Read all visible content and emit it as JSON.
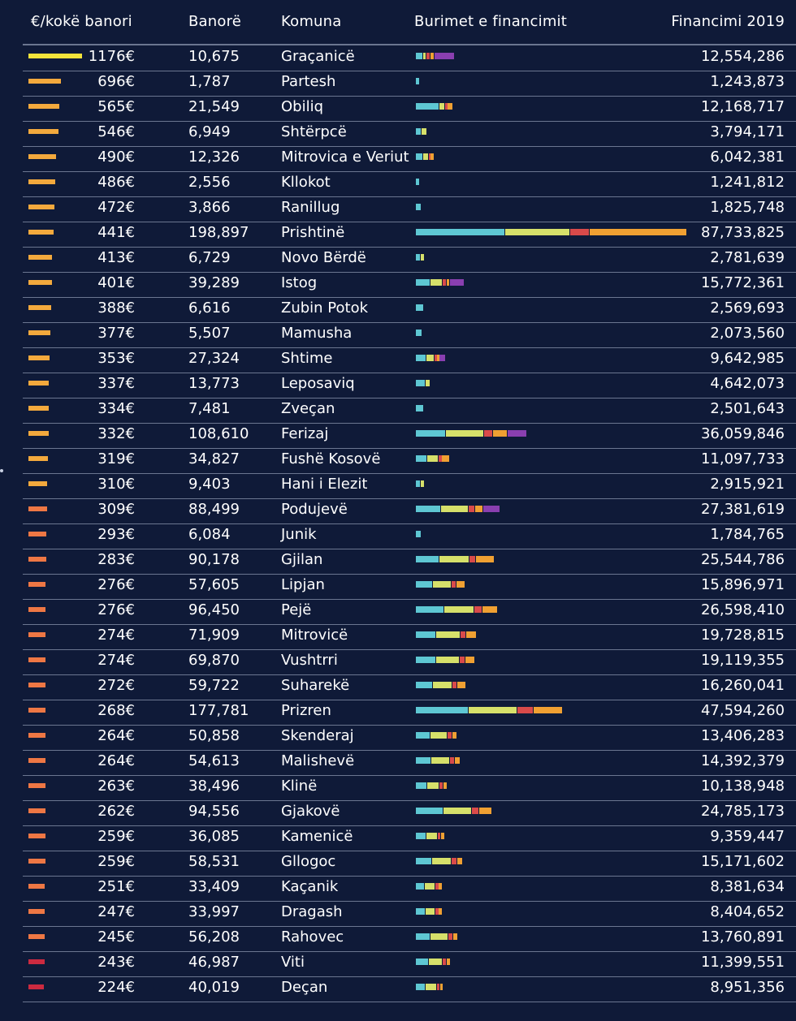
{
  "header": {
    "per_capita": "€/kokë banori",
    "population": "Banorë",
    "municipality": "Komuna",
    "sources": "Burimet e financimit",
    "funding": "Financimi 2019"
  },
  "colors": {
    "background": "#0f1a38",
    "divider": "#6b7690",
    "source_1": "#5ec7d3",
    "source_2": "#d6e06a",
    "source_3": "#d94a4a",
    "source_4": "#f0a032",
    "source_5": "#8a3fb0",
    "indicator_scale": [
      "#f4e43b",
      "#f3a93d",
      "#ee7744",
      "#cc2a40"
    ]
  },
  "chart_data": {
    "type": "table",
    "columns": [
      "€/kokë banori",
      "Banorë",
      "Komuna",
      "Burimet e financimit",
      "Financimi 2019"
    ],
    "rows": [
      {
        "pc": "1176€",
        "pc_value": 1176,
        "pop": "10,675",
        "mun": "Graçanicë",
        "fin": "12,554,286",
        "fin_value": 12554286,
        "sources": [
          0.18,
          0.1,
          0.1,
          0.1,
          0.52
        ]
      },
      {
        "pc": "696€",
        "pc_value": 696,
        "pop": "1,787",
        "mun": "Partesh",
        "fin": "1,243,873",
        "fin_value": 1243873,
        "sources": [
          1,
          0,
          0,
          0,
          0
        ]
      },
      {
        "pc": "565€",
        "pc_value": 565,
        "pop": "21,549",
        "mun": "Obiliq",
        "fin": "12,168,717",
        "fin_value": 12168717,
        "sources": [
          0.62,
          0.15,
          0.08,
          0.15,
          0
        ]
      },
      {
        "pc": "546€",
        "pc_value": 546,
        "pop": "6,949",
        "mun": "Shtërpcë",
        "fin": "3,794,171",
        "fin_value": 3794171,
        "sources": [
          0.5,
          0.5,
          0,
          0,
          0
        ]
      },
      {
        "pc": "490€",
        "pc_value": 490,
        "pop": "12,326",
        "mun": "Mitrovica e Veriut",
        "fin": "6,042,381",
        "fin_value": 6042381,
        "sources": [
          0.4,
          0.3,
          0.1,
          0.2,
          0
        ]
      },
      {
        "pc": "486€",
        "pc_value": 486,
        "pop": "2,556",
        "mun": "Kllokot",
        "fin": "1,241,812",
        "fin_value": 1241812,
        "sources": [
          1,
          0,
          0,
          0,
          0
        ]
      },
      {
        "pc": "472€",
        "pc_value": 472,
        "pop": "3,866",
        "mun": "Ranillug",
        "fin": "1,825,748",
        "fin_value": 1825748,
        "sources": [
          1,
          0,
          0,
          0,
          0
        ]
      },
      {
        "pc": "441€",
        "pc_value": 441,
        "pop": "198,897",
        "mun": "Prishtinë",
        "fin": "87,733,825",
        "fin_value": 87733825,
        "sources": [
          0.33,
          0.24,
          0.07,
          0.36,
          0
        ]
      },
      {
        "pc": "413€",
        "pc_value": 413,
        "pop": "6,729",
        "mun": "Novo Bërdë",
        "fin": "2,781,639",
        "fin_value": 2781639,
        "sources": [
          0.6,
          0.4,
          0,
          0,
          0
        ]
      },
      {
        "pc": "401€",
        "pc_value": 401,
        "pop": "39,289",
        "mun": "Istog",
        "fin": "15,772,361",
        "fin_value": 15772361,
        "sources": [
          0.3,
          0.25,
          0.08,
          0.07,
          0.3
        ]
      },
      {
        "pc": "388€",
        "pc_value": 388,
        "pop": "6,616",
        "mun": "Zubin Potok",
        "fin": "2,569,693",
        "fin_value": 2569693,
        "sources": [
          1,
          0,
          0,
          0,
          0
        ]
      },
      {
        "pc": "377€",
        "pc_value": 377,
        "pop": "5,507",
        "mun": "Mamusha",
        "fin": "2,073,560",
        "fin_value": 2073560,
        "sources": [
          1,
          0,
          0,
          0,
          0
        ]
      },
      {
        "pc": "353€",
        "pc_value": 353,
        "pop": "27,324",
        "mun": "Shtime",
        "fin": "9,642,985",
        "fin_value": 9642985,
        "sources": [
          0.36,
          0.28,
          0.08,
          0.08,
          0.2
        ]
      },
      {
        "pc": "337€",
        "pc_value": 337,
        "pop": "13,773",
        "mun": "Leposaviq",
        "fin": "4,642,073",
        "fin_value": 4642073,
        "sources": [
          0.7,
          0.3,
          0,
          0,
          0
        ]
      },
      {
        "pc": "334€",
        "pc_value": 334,
        "pop": "7,481",
        "mun": "Zveçan",
        "fin": "2,501,643",
        "fin_value": 2501643,
        "sources": [
          1,
          0,
          0,
          0,
          0
        ]
      },
      {
        "pc": "332€",
        "pc_value": 332,
        "pop": "108,610",
        "mun": "Ferizaj",
        "fin": "36,059,846",
        "fin_value": 36059846,
        "sources": [
          0.27,
          0.34,
          0.08,
          0.13,
          0.18
        ]
      },
      {
        "pc": "319€",
        "pc_value": 319,
        "pop": "34,827",
        "mun": "Fushë Kosovë",
        "fin": "11,097,733",
        "fin_value": 11097733,
        "sources": [
          0.32,
          0.35,
          0.08,
          0.25,
          0
        ]
      },
      {
        "pc": "310€",
        "pc_value": 310,
        "pop": "9,403",
        "mun": "Hani i Elezit",
        "fin": "2,915,921",
        "fin_value": 2915921,
        "sources": [
          0.5,
          0.5,
          0,
          0,
          0
        ]
      },
      {
        "pc": "309€",
        "pc_value": 309,
        "pop": "88,499",
        "mun": "Podujevë",
        "fin": "27,381,619",
        "fin_value": 27381619,
        "sources": [
          0.3,
          0.32,
          0.08,
          0.1,
          0.2
        ]
      },
      {
        "pc": "293€",
        "pc_value": 293,
        "pop": "6,084",
        "mun": "Junik",
        "fin": "1,784,765",
        "fin_value": 1784765,
        "sources": [
          1,
          0,
          0,
          0,
          0
        ]
      },
      {
        "pc": "283€",
        "pc_value": 283,
        "pop": "90,178",
        "mun": "Gjilan",
        "fin": "25,544,786",
        "fin_value": 25544786,
        "sources": [
          0.3,
          0.38,
          0.08,
          0.24,
          0
        ]
      },
      {
        "pc": "276€",
        "pc_value": 276,
        "pop": "57,605",
        "mun": "Lipjan",
        "fin": "15,896,971",
        "fin_value": 15896971,
        "sources": [
          0.34,
          0.38,
          0.1,
          0.18,
          0
        ]
      },
      {
        "pc": "276€",
        "pc_value": 276,
        "pop": "96,450",
        "mun": "Pejë",
        "fin": "26,598,410",
        "fin_value": 26598410,
        "sources": [
          0.35,
          0.36,
          0.1,
          0.19,
          0
        ]
      },
      {
        "pc": "274€",
        "pc_value": 274,
        "pop": "71,909",
        "mun": "Mitrovicë",
        "fin": "19,728,815",
        "fin_value": 19728815,
        "sources": [
          0.33,
          0.4,
          0.1,
          0.17,
          0
        ]
      },
      {
        "pc": "274€",
        "pc_value": 274,
        "pop": "69,870",
        "mun": "Vushtrri",
        "fin": "19,119,355",
        "fin_value": 19119355,
        "sources": [
          0.34,
          0.4,
          0.1,
          0.16,
          0
        ]
      },
      {
        "pc": "272€",
        "pc_value": 272,
        "pop": "59,722",
        "mun": "Suharekë",
        "fin": "16,260,041",
        "fin_value": 16260041,
        "sources": [
          0.34,
          0.38,
          0.1,
          0.18,
          0
        ]
      },
      {
        "pc": "268€",
        "pc_value": 268,
        "pop": "177,781",
        "mun": "Prizren",
        "fin": "47,594,260",
        "fin_value": 47594260,
        "sources": [
          0.36,
          0.33,
          0.11,
          0.2,
          0
        ]
      },
      {
        "pc": "264€",
        "pc_value": 264,
        "pop": "50,858",
        "mun": "Skenderaj",
        "fin": "13,406,283",
        "fin_value": 13406283,
        "sources": [
          0.36,
          0.4,
          0.12,
          0.12,
          0
        ]
      },
      {
        "pc": "264€",
        "pc_value": 264,
        "pop": "54,613",
        "mun": "Malishevë",
        "fin": "14,392,379",
        "fin_value": 14392379,
        "sources": [
          0.35,
          0.41,
          0.12,
          0.12,
          0
        ]
      },
      {
        "pc": "263€",
        "pc_value": 263,
        "pop": "38,496",
        "mun": "Klinë",
        "fin": "10,138,948",
        "fin_value": 10138948,
        "sources": [
          0.36,
          0.4,
          0.12,
          0.12,
          0
        ]
      },
      {
        "pc": "262€",
        "pc_value": 262,
        "pop": "94,556",
        "mun": "Gjakovë",
        "fin": "24,785,173",
        "fin_value": 24785173,
        "sources": [
          0.36,
          0.37,
          0.1,
          0.17,
          0
        ]
      },
      {
        "pc": "259€",
        "pc_value": 259,
        "pop": "36,085",
        "mun": "Kamenicë",
        "fin": "9,359,447",
        "fin_value": 9359447,
        "sources": [
          0.36,
          0.4,
          0.12,
          0.12,
          0
        ]
      },
      {
        "pc": "259€",
        "pc_value": 259,
        "pop": "58,531",
        "mun": "Gllogoc",
        "fin": "15,171,602",
        "fin_value": 15171602,
        "sources": [
          0.35,
          0.41,
          0.12,
          0.12,
          0
        ]
      },
      {
        "pc": "251€",
        "pc_value": 251,
        "pop": "33,409",
        "mun": "Kaçanik",
        "fin": "8,381,634",
        "fin_value": 8381634,
        "sources": [
          0.36,
          0.4,
          0.12,
          0.12,
          0
        ]
      },
      {
        "pc": "247€",
        "pc_value": 247,
        "pop": "33,997",
        "mun": "Dragash",
        "fin": "8,404,652",
        "fin_value": 8404652,
        "sources": [
          0.36,
          0.4,
          0.12,
          0.12,
          0
        ]
      },
      {
        "pc": "245€",
        "pc_value": 245,
        "pop": "56,208",
        "mun": "Rahovec",
        "fin": "13,760,891",
        "fin_value": 13760891,
        "sources": [
          0.35,
          0.41,
          0.12,
          0.12,
          0
        ]
      },
      {
        "pc": "243€",
        "pc_value": 243,
        "pop": "46,987",
        "mun": "Viti",
        "fin": "11,399,551",
        "fin_value": 11399551,
        "sources": [
          0.36,
          0.4,
          0.12,
          0.12,
          0
        ]
      },
      {
        "pc": "224€",
        "pc_value": 224,
        "pop": "40,019",
        "mun": "Deçan",
        "fin": "8,951,356",
        "fin_value": 8951356,
        "sources": [
          0.36,
          0.4,
          0.12,
          0.12,
          0
        ]
      }
    ]
  }
}
